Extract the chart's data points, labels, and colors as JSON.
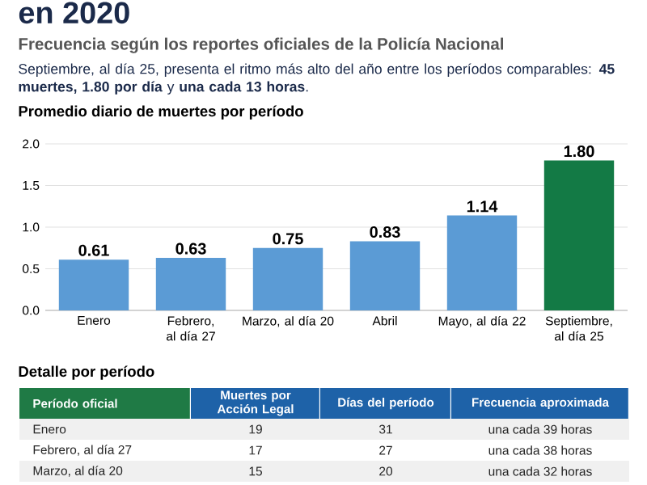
{
  "chart_data": {
    "type": "bar",
    "title": "en 2020",
    "subtitle": "Frecuencia según los reportes oficiales de la Policía Nacional",
    "categories": [
      "Enero",
      "Febrero, al día 27",
      "Marzo, al día 20",
      "Abril",
      "Mayo, al día 22",
      "Septiembre, al día 25"
    ],
    "values": [
      0.61,
      0.63,
      0.75,
      0.83,
      1.14,
      1.8
    ],
    "value_labels": [
      "0.61",
      "0.63",
      "0.75",
      "0.83",
      "1.14",
      "1.80"
    ],
    "colors": [
      "#5b9bd5",
      "#5b9bd5",
      "#5b9bd5",
      "#5b9bd5",
      "#5b9bd5",
      "#137a45"
    ],
    "ylim": [
      0,
      2.0
    ],
    "yticks": [
      {
        "value": 0,
        "label": "0.0"
      },
      {
        "value": 0.5,
        "label": "0.5"
      },
      {
        "value": 1.0,
        "label": "1.0"
      },
      {
        "value": 1.5,
        "label": "1.5"
      },
      {
        "value": 2.0,
        "label": "2.0"
      }
    ],
    "grid": "y",
    "annotations": [
      "Septiembre, al día 25, presenta el ritmo más alto del año entre los períodos comparables: **45 muertes, 1.80 por día** y **una cada 13 horas**.",
      "Promedio diario de muertes por período",
      "Detalle por período",
      "Período oficial",
      "Muertes por Acción Legal",
      "Días del período",
      "Frecuencia aproximada",
      "Enero",
      "19",
      "31",
      "una cada 39 horas",
      "Febrero, al día 27",
      "17",
      "27",
      "una cada 38 horas",
      "Marzo, al día 20",
      "15",
      "20",
      "una cada 32 horas"
    ]
  }
}
